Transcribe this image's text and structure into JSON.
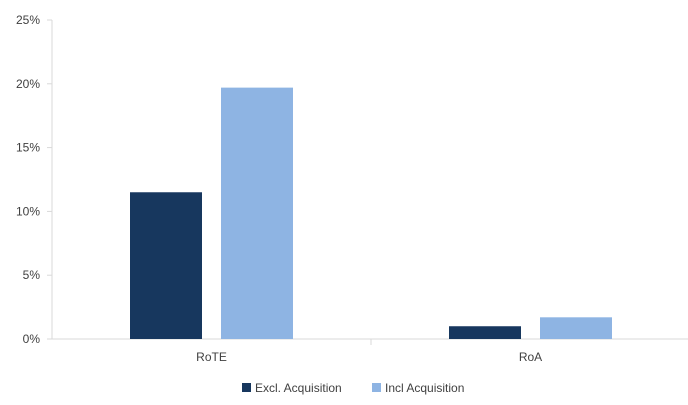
{
  "chart_data": {
    "type": "bar",
    "categories": [
      "RoTE",
      "RoA"
    ],
    "series": [
      {
        "name": "Excl. Acquisition",
        "values": [
          11.5,
          1.0
        ],
        "color": "#17375e"
      },
      {
        "name": "Incl Acquisition",
        "values": [
          19.7,
          1.7
        ],
        "color": "#8eb4e3"
      }
    ],
    "ylim": [
      0,
      25
    ],
    "yticks": [
      0,
      5,
      10,
      15,
      20,
      25
    ],
    "ytick_labels": [
      "0%",
      "5%",
      "10%",
      "15%",
      "20%",
      "25%"
    ],
    "grid": false,
    "legend_position": "bottom"
  }
}
